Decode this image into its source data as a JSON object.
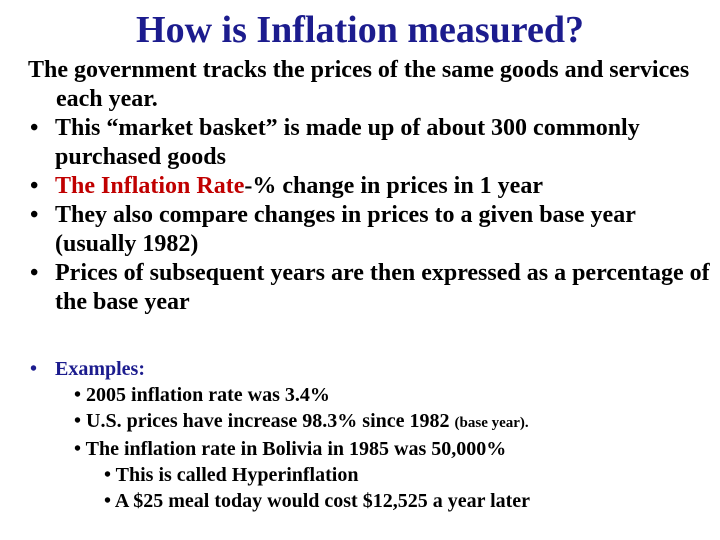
{
  "title": "How is Inflation measured?",
  "intro": "The government tracks the prices of the same goods and services each year.",
  "bullets": [
    [
      "This “market basket” is made up of about 300 commonly purchased goods"
    ],
    [
      "The Inflation Rate",
      "-% change in prices in 1 year"
    ],
    [
      "They also compare changes in prices to a given base year (usually 1982)"
    ],
    [
      "Prices of subsequent years are then expressed as a percentage of the base year"
    ]
  ],
  "examples": {
    "label": "Examples:",
    "items": [
      [
        "2005 inflation rate was 3.4%"
      ],
      [
        "U.S. prices have increase 98.3% since 1982 ",
        "(base year)."
      ],
      [
        "The inflation rate in Bolivia in 1985 was 50,000%"
      ]
    ],
    "subitems": [
      "This is called Hyperinflation",
      "A $25 meal today would cost $12,525 a year later"
    ]
  }
}
